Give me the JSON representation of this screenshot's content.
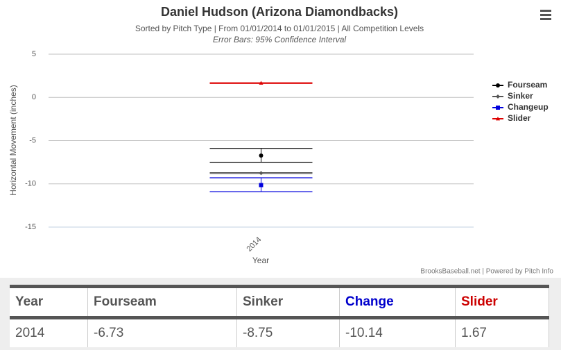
{
  "chart_data": {
    "type": "errorbar",
    "title": "Daniel Hudson (Arizona Diamondbacks)",
    "subtitle": "Sorted by Pitch Type | From 01/01/2014 to 01/01/2015 | All Competition Levels",
    "note": "Error Bars: 95% Confidence Interval",
    "y_label": "Horizontal Movement (inches)",
    "x_label": "Year",
    "credit": "BrooksBaseball.net | Powered by Pitch Info",
    "categories": [
      "2014"
    ],
    "ylim": [
      -15,
      5
    ],
    "yticks": [
      5,
      0,
      -5,
      -10,
      -15
    ],
    "grid": true,
    "series": [
      {
        "name": "Fourseam",
        "color": "#000000",
        "marker": "circle",
        "values": [
          -6.73
        ],
        "low": [
          -7.5
        ],
        "high": [
          -5.9
        ]
      },
      {
        "name": "Sinker",
        "color": "#555555",
        "marker": "diamond",
        "values": [
          -8.75
        ],
        "low": [
          -8.8
        ],
        "high": [
          -8.7
        ]
      },
      {
        "name": "Changeup",
        "color": "#0000dd",
        "marker": "square",
        "values": [
          -10.14
        ],
        "low": [
          -10.9
        ],
        "high": [
          -9.3
        ]
      },
      {
        "name": "Slider",
        "color": "#dd0000",
        "marker": "triangle",
        "values": [
          1.67
        ],
        "low": [
          1.6
        ],
        "high": [
          1.7
        ]
      }
    ]
  },
  "table": {
    "header": [
      "Year",
      "Fourseam",
      "Sinker",
      "Change",
      "Slider"
    ],
    "header_colors": [
      "#555555",
      "#555555",
      "#555555",
      "#0000cc",
      "#cc0000"
    ],
    "rows": [
      [
        2014,
        -6.73,
        -8.75,
        -10.14,
        1.67
      ]
    ]
  }
}
